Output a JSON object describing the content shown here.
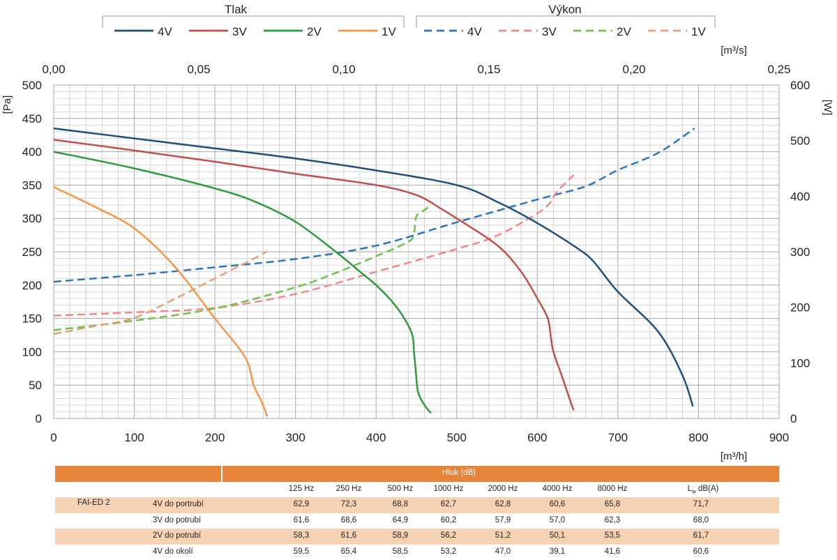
{
  "legend": {
    "tlak_title": "Tlak",
    "vykon_title": "Výkon",
    "tlak_items": [
      {
        "label": "4V",
        "color": "#1f4e79"
      },
      {
        "label": "3V",
        "color": "#c0504d"
      },
      {
        "label": "2V",
        "color": "#2e9a3e"
      },
      {
        "label": "1V",
        "color": "#f79646"
      }
    ],
    "vykon_items": [
      {
        "label": "4V",
        "color": "#2e75b6"
      },
      {
        "label": "3V",
        "color": "#f4878a"
      },
      {
        "label": "2V",
        "color": "#70c04a"
      },
      {
        "label": "1V",
        "color": "#e3a07a"
      }
    ]
  },
  "chart_data": {
    "type": "line",
    "x_unit": "[m³/h]",
    "x_top_unit": "[m³/s]",
    "y_left_unit": "[Pa]",
    "y_right_unit": "[W]",
    "xlim": [
      0,
      900
    ],
    "x_top_lim": [
      0,
      0.25
    ],
    "ylim_left": [
      0,
      500
    ],
    "ylim_right": [
      0,
      600
    ],
    "grid": true,
    "x_ticks": [
      "0",
      "100",
      "200",
      "300",
      "400",
      "500",
      "600",
      "700",
      "800",
      "900"
    ],
    "x_top_ticks": [
      "0,00",
      "0,05",
      "0,10",
      "0,15",
      "0,20",
      "0,25"
    ],
    "y_left_ticks": [
      "0",
      "50",
      "100",
      "150",
      "200",
      "250",
      "300",
      "350",
      "400",
      "450",
      "500"
    ],
    "y_right_ticks": [
      "0",
      "100",
      "200",
      "300",
      "400",
      "500",
      "600"
    ],
    "pressure_series": [
      {
        "name": "4V",
        "color": "#1f4e79",
        "x": [
          0,
          100,
          200,
          300,
          400,
          500,
          550,
          600,
          650,
          670,
          700,
          750,
          780,
          793
        ],
        "y": [
          435,
          420,
          405,
          390,
          372,
          350,
          325,
          293,
          255,
          235,
          190,
          130,
          65,
          18
        ]
      },
      {
        "name": "3V",
        "color": "#c0504d",
        "x": [
          0,
          100,
          200,
          300,
          400,
          450,
          480,
          500,
          550,
          580,
          600,
          613,
          617,
          620,
          630,
          645
        ],
        "y": [
          418,
          402,
          385,
          367,
          350,
          335,
          315,
          300,
          260,
          220,
          180,
          150,
          120,
          100,
          65,
          12
        ]
      },
      {
        "name": "2V",
        "color": "#2e9a3e",
        "x": [
          0,
          100,
          200,
          250,
          300,
          350,
          380,
          400,
          420,
          435,
          445,
          447,
          449,
          452,
          460,
          468
        ],
        "y": [
          400,
          375,
          345,
          325,
          295,
          250,
          220,
          200,
          175,
          150,
          125,
          100,
          75,
          40,
          20,
          8
        ]
      },
      {
        "name": "1V",
        "color": "#f79646",
        "x": [
          0,
          50,
          100,
          150,
          200,
          230,
          242,
          248,
          258,
          265
        ],
        "y": [
          347,
          318,
          285,
          228,
          150,
          105,
          80,
          50,
          25,
          3
        ]
      }
    ],
    "power_series": [
      {
        "name": "4V",
        "color": "#2e75b6",
        "x": [
          0,
          100,
          200,
          300,
          400,
          500,
          600,
          650,
          670,
          700,
          750,
          795
        ],
        "y": [
          246,
          258,
          272,
          287,
          311,
          353,
          394,
          413,
          424,
          447,
          478,
          522
        ]
      },
      {
        "name": "3V",
        "color": "#f4878a",
        "x": [
          0,
          100,
          200,
          300,
          400,
          500,
          550,
          600,
          615,
          625,
          645
        ],
        "y": [
          185,
          191,
          199,
          224,
          264,
          305,
          329,
          369,
          387,
          409,
          438
        ]
      },
      {
        "name": "2V",
        "color": "#70c04a",
        "x": [
          0,
          100,
          200,
          300,
          350,
          400,
          440,
          447,
          450,
          460,
          467
        ],
        "y": [
          159,
          176,
          198,
          236,
          262,
          292,
          318,
          334,
          364,
          375,
          383
        ]
      },
      {
        "name": "1V",
        "color": "#e3a07a",
        "x": [
          0,
          50,
          100,
          150,
          200,
          250,
          265
        ],
        "y": [
          152,
          166,
          181,
          215,
          252,
          289,
          301
        ]
      }
    ]
  },
  "noise_table": {
    "header": "Hluk (dB)",
    "bands": [
      "125 Hz",
      "250 Hz",
      "500 Hz",
      "1000 Hz",
      "2000 Hz",
      "4000 Hz",
      "8000 Hz"
    ],
    "lw_main": "L",
    "lw_sub": "w",
    "lw_rest": " dB(A)",
    "model": "FAI-ED 2",
    "rows": [
      {
        "label": "4V do portrubí",
        "values": [
          "62,9",
          "72,3",
          "68,8",
          "62,7",
          "62,8",
          "60,6",
          "65,8"
        ],
        "lw": "71,7"
      },
      {
        "label": "3V do potrubí",
        "values": [
          "61,6",
          "68,6",
          "64,9",
          "60,2",
          "57,9",
          "57,0",
          "62,3"
        ],
        "lw": "68,0"
      },
      {
        "label": "2V do potrubí",
        "values": [
          "58,3",
          "61,6",
          "58,9",
          "56,2",
          "51,2",
          "50,1",
          "53,5"
        ],
        "lw": "61,7"
      },
      {
        "label": "4V do okolí",
        "values": [
          "59,5",
          "65,4",
          "58,5",
          "53,2",
          "47,0",
          "39,1",
          "41,6"
        ],
        "lw": "60,6"
      }
    ]
  }
}
